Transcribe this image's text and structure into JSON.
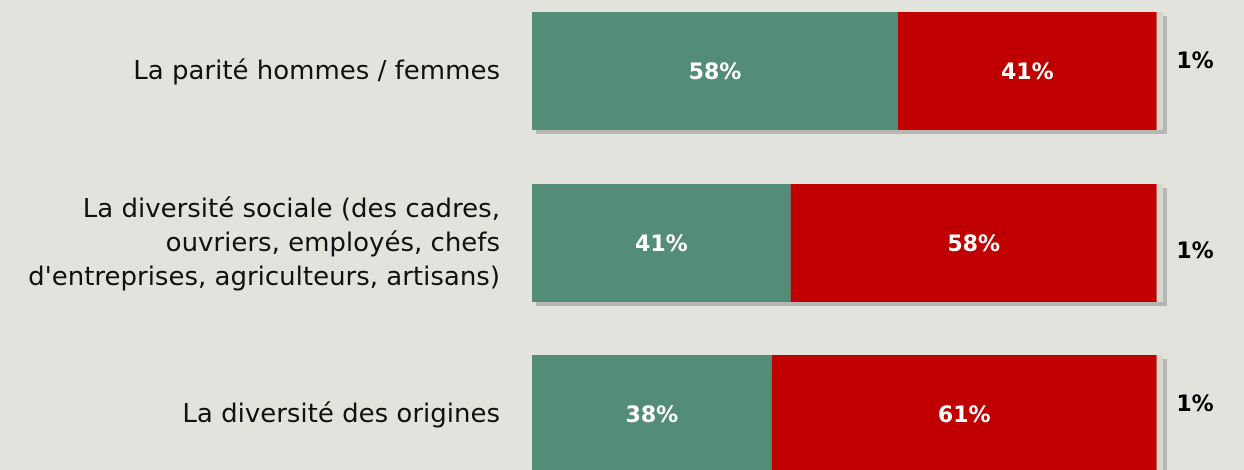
{
  "chart_data": {
    "type": "stacked-barh",
    "categories": [
      "La parité hommes / femmes",
      "La diversité sociale (des cadres, ouvriers, employés, chefs d'entreprises, agriculteurs, artisans)",
      "La diversité des origines"
    ],
    "xlim": [
      0,
      100
    ],
    "series": [
      {
        "color": "#548d77",
        "values": [
          58,
          41,
          38
        ],
        "value_labels": [
          "58%",
          "41%",
          "38%"
        ]
      },
      {
        "color": "#c00000",
        "values": [
          41,
          58,
          61
        ],
        "value_labels": [
          "41%",
          "58%",
          "61%"
        ]
      },
      {
        "color": "#d6d6cf",
        "values": [
          1,
          1,
          1
        ],
        "value_labels": [
          "1%",
          "1%",
          "1%"
        ]
      }
    ]
  }
}
